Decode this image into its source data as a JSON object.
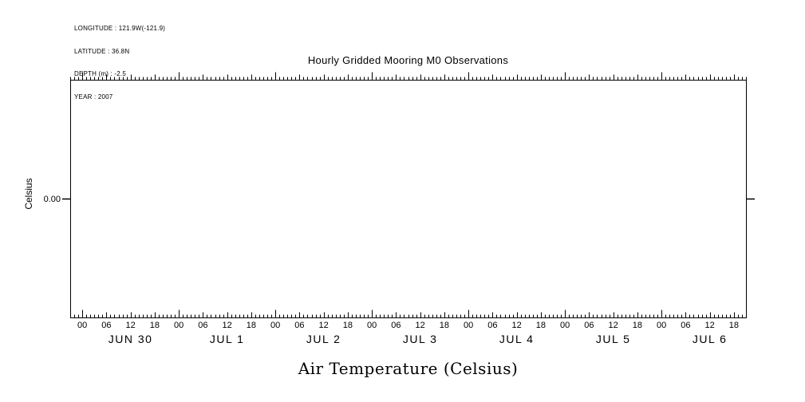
{
  "metadata": {
    "longitude": "LONGITUDE : 121.9W(-121.9)",
    "latitude": "LATITUDE : 36.8N",
    "depth": "DEPTH (m) : -2.5",
    "year": "YEAR : 2007"
  },
  "chart_data": {
    "type": "line",
    "title": "Hourly Gridded Mooring M0 Observations",
    "xlabel": "Air Temperature (Celsius)",
    "ylabel": "Celsius",
    "x_axis": {
      "start_hours": -3,
      "end_hours": 165,
      "hour_tick_interval": 1,
      "label_tick_interval": 6,
      "hour_labels": [
        "00",
        "06",
        "12",
        "18"
      ],
      "day_labels": [
        "JUN 30",
        "JUL 1",
        "JUL 2",
        "JUL 3",
        "JUL 4",
        "JUL 5",
        "JUL 6"
      ]
    },
    "y_axis": {
      "tick_labels": [
        "0.00"
      ],
      "zero_position": 0.5
    },
    "series": [],
    "grid": false,
    "legend": false
  }
}
